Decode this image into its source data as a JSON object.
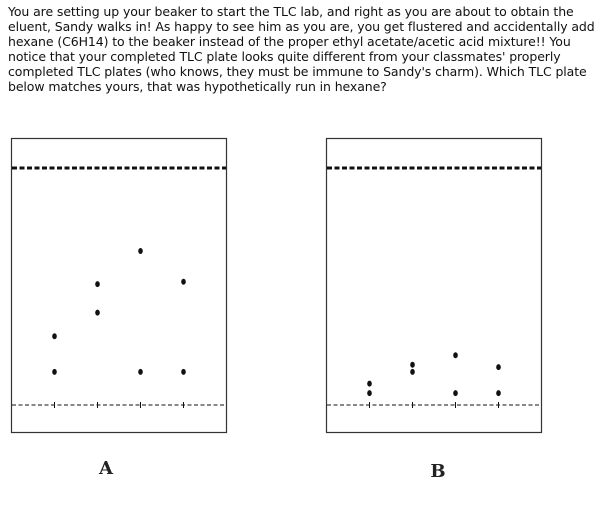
{
  "question": {
    "text": "You are setting up your beaker to start the TLC lab, and right as you are about to obtain the eluent, Sandy walks in! As happy to see him as you are, you get flustered and accidentally add hexane (C6H14) to the beaker instead of the proper ethyl acetate/acetic acid mixture!! You notice that your completed TLC plate looks quite different from your classmates' properly completed TLC plates (who knows, they must be immune to Sandy's charm). Which TLC plate below matches yours, that was hypothetically run in hexane?"
  },
  "plates": [
    {
      "label": "A",
      "lanes": [
        {
          "spot_heights": [
            0.14,
            0.29
          ]
        },
        {
          "spot_heights": [
            0.39,
            0.51
          ]
        },
        {
          "spot_heights": [
            0.14,
            0.65
          ]
        },
        {
          "spot_heights": [
            0.14,
            0.52
          ]
        }
      ]
    },
    {
      "label": "B",
      "lanes": [
        {
          "spot_heights": [
            0.05,
            0.09
          ]
        },
        {
          "spot_heights": [
            0.14,
            0.17
          ]
        },
        {
          "spot_heights": [
            0.05,
            0.21
          ]
        },
        {
          "spot_heights": [
            0.05,
            0.16
          ]
        }
      ]
    }
  ],
  "colors": {
    "text": "#111111",
    "plate_border": "#333333",
    "spot": "#111111"
  }
}
